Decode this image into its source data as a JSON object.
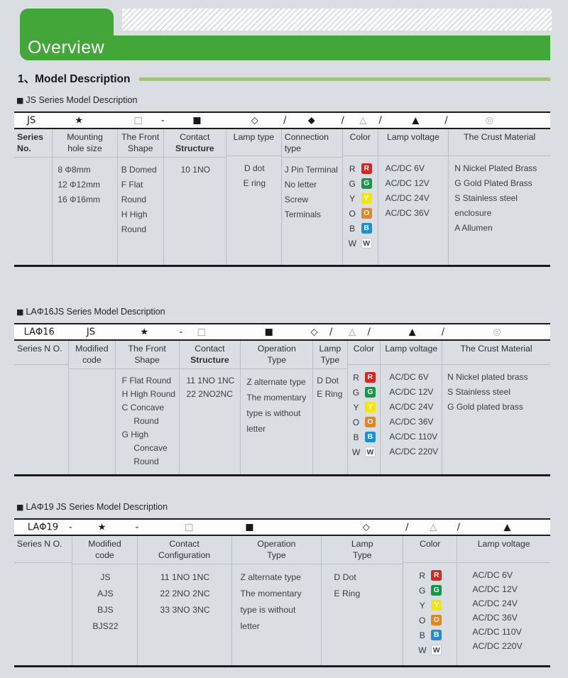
{
  "ui": {
    "section_marker": "■"
  },
  "theme": {
    "accent_green": "#43a638",
    "light_green_rule": "#9bcb68",
    "page_bg": "#dadde1",
    "table_border": "#1b1b1b",
    "grid_line": "#b9bdc4"
  },
  "page": {
    "tab_label": "Overview",
    "heading_number": "1",
    "heading_separator": "、",
    "heading_title": "Model Description"
  },
  "lamp_colors": [
    {
      "letter": "R",
      "bg": "#d8251d",
      "fg": "#ffffff"
    },
    {
      "letter": "G",
      "bg": "#13984a",
      "fg": "#ffffff"
    },
    {
      "letter": "Y",
      "bg": "#f3e60e",
      "fg": "#ffffff"
    },
    {
      "letter": "O",
      "bg": "#e2861f",
      "fg": "#ffffff"
    },
    {
      "letter": "B",
      "bg": "#1a8fd8",
      "fg": "#ffffff"
    },
    {
      "letter": "W",
      "bg": "#ffffff",
      "fg": "#3b3e43",
      "border": "#c2c6cc"
    }
  ],
  "tables": [
    {
      "label": "JS Series Model Description",
      "symbols": [
        {
          "g": "JS",
          "x": 2.4
        },
        {
          "g": "★",
          "x": 11.3
        },
        {
          "g": "□",
          "x": 22.3,
          "c": "#8f959c"
        },
        {
          "g": "-",
          "x": 27.4
        },
        {
          "g": "■",
          "x": 33.3
        },
        {
          "g": "◇",
          "x": 44.2
        },
        {
          "g": "/",
          "x": 50.2
        },
        {
          "g": "◆",
          "x": 54.8
        },
        {
          "g": "/",
          "x": 61.0
        },
        {
          "g": "△",
          "x": 64.4,
          "c": "#8f959c"
        },
        {
          "g": "/",
          "x": 68.0
        },
        {
          "g": "▲",
          "x": 74.2
        },
        {
          "g": "/",
          "x": 80.3
        },
        {
          "g": "◎",
          "x": 87.9,
          "c": "#a9aeb5"
        }
      ],
      "columns": [
        {
          "header": [
            "Series",
            "No."
          ],
          "lines": []
        },
        {
          "header": [
            "Mounting",
            "hole size"
          ],
          "lines": [
            "8 Φ8mm",
            "12 Φ12mm",
            "16 Φ16mm"
          ]
        },
        {
          "header": [
            "The Front",
            "Shape"
          ],
          "lines": [
            "B Domed",
            "F Flat Round",
            "H High Round"
          ]
        },
        {
          "header": [
            "Contact",
            "Structure"
          ],
          "lines": [
            "10 1NO"
          ]
        },
        {
          "header": [
            "Lamp type"
          ],
          "lines": [
            "D dot",
            "E ring"
          ]
        },
        {
          "header": [
            "Connection",
            "type"
          ],
          "lines": [
            "J Pin Terminal",
            "No letter",
            "Screw Terminals"
          ]
        },
        {
          "header": [
            "Color"
          ]
        },
        {
          "header": [
            "Lamp voltage"
          ],
          "lines": [
            "AC/DC 6V",
            "AC/DC 12V",
            "AC/DC 24V",
            "AC/DC 36V"
          ]
        },
        {
          "header": [
            "The Crust Material"
          ],
          "lines": [
            "N Nickel Plated Brass",
            "G Gold Plated Brass",
            "S Stainless steel enclosure",
            "A Allumen"
          ]
        }
      ]
    },
    {
      "label": "LAΦ16JS Series Model Description",
      "symbols": [
        {
          "g": "LAΦ16",
          "x": 1.8
        },
        {
          "g": "JS",
          "x": 13.5
        },
        {
          "g": "★",
          "x": 23.5
        },
        {
          "g": "-",
          "x": 30.8
        },
        {
          "g": "□",
          "x": 34.1,
          "c": "#8f959c"
        },
        {
          "g": "■",
          "x": 46.7
        },
        {
          "g": "◇",
          "x": 55.3
        },
        {
          "g": "/",
          "x": 58.8
        },
        {
          "g": "△",
          "x": 62.4,
          "c": "#8f959c"
        },
        {
          "g": "/",
          "x": 65.9
        },
        {
          "g": "▲",
          "x": 73.6
        },
        {
          "g": "/",
          "x": 79.7
        },
        {
          "g": "◎",
          "x": 89.3,
          "c": "#a9aeb5"
        }
      ],
      "columns": [
        {
          "header": [
            "Series N O."
          ],
          "lines": []
        },
        {
          "header": [
            "Modified",
            "code"
          ],
          "lines": []
        },
        {
          "header": [
            "The Front",
            "Shape"
          ],
          "lines": [
            "F Flat Round",
            "H High Round",
            "C Concave",
            "     Round",
            "G High",
            "     Concave",
            "     Round"
          ]
        },
        {
          "header": [
            "Contact",
            "Structure"
          ],
          "lines": [
            "11 1NO 1NC",
            "22 2NO2NC"
          ]
        },
        {
          "header": [
            "Operation",
            "Type"
          ],
          "lines": [
            "Z alternate type",
            "The momentary",
            "type is without",
            "letter"
          ]
        },
        {
          "header": [
            "Lamp",
            "Type"
          ],
          "lines": [
            "D Dot",
            "E Ring"
          ]
        },
        {
          "header": [
            "Color"
          ]
        },
        {
          "header": [
            "Lamp voltage"
          ],
          "lines": [
            "AC/DC 6V",
            "AC/DC 12V",
            "AC/DC 24V",
            "AC/DC 36V",
            "AC/DC 110V",
            "AC/DC 220V"
          ]
        },
        {
          "header": [
            "The Crust Material"
          ],
          "lines": [
            "N Nickel plated brass",
            "S Stainless steel",
            "G Gold plated brass"
          ]
        }
      ]
    },
    {
      "label": "LAΦ19 JS Series Model Description",
      "symbols": [
        {
          "g": "LAΦ19",
          "x": 2.5
        },
        {
          "g": "-",
          "x": 10.2
        },
        {
          "g": "★",
          "x": 15.6
        },
        {
          "g": "-",
          "x": 22.6
        },
        {
          "g": "□",
          "x": 31.8,
          "c": "#8f959c"
        },
        {
          "g": "■",
          "x": 43.1
        },
        {
          "g": "◇",
          "x": 65.0
        },
        {
          "g": "/",
          "x": 73.0
        },
        {
          "g": "△",
          "x": 77.5,
          "c": "#8f959c"
        },
        {
          "g": "/",
          "x": 82.6
        },
        {
          "g": "▲",
          "x": 91.3
        }
      ],
      "columns": [
        {
          "header": [
            "Series N O."
          ],
          "lines": []
        },
        {
          "header": [
            "Modified",
            "code"
          ],
          "lines": [
            "JS",
            "AJS",
            "BJS",
            "BJS22"
          ]
        },
        {
          "header": [
            "Contact",
            "Configuration"
          ],
          "lines": [
            "11 1NO 1NC",
            "22 2NO 2NC",
            "33 3NO 3NC"
          ]
        },
        {
          "header": [
            "Operation",
            "Type"
          ],
          "lines": [
            "Z alternate type",
            "The momentary",
            "type is without",
            "letter"
          ]
        },
        {
          "header": [
            "Lamp",
            "Type"
          ],
          "lines": [
            "D Dot",
            "E Ring"
          ]
        },
        {
          "header": [
            "Color"
          ]
        },
        {
          "header": [
            "Lamp voltage"
          ],
          "lines": [
            "AC/DC 6V",
            "AC/DC 12V",
            "AC/DC 24V",
            "AC/DC 36V",
            "AC/DC 110V",
            "AC/DC 220V"
          ]
        }
      ]
    }
  ]
}
